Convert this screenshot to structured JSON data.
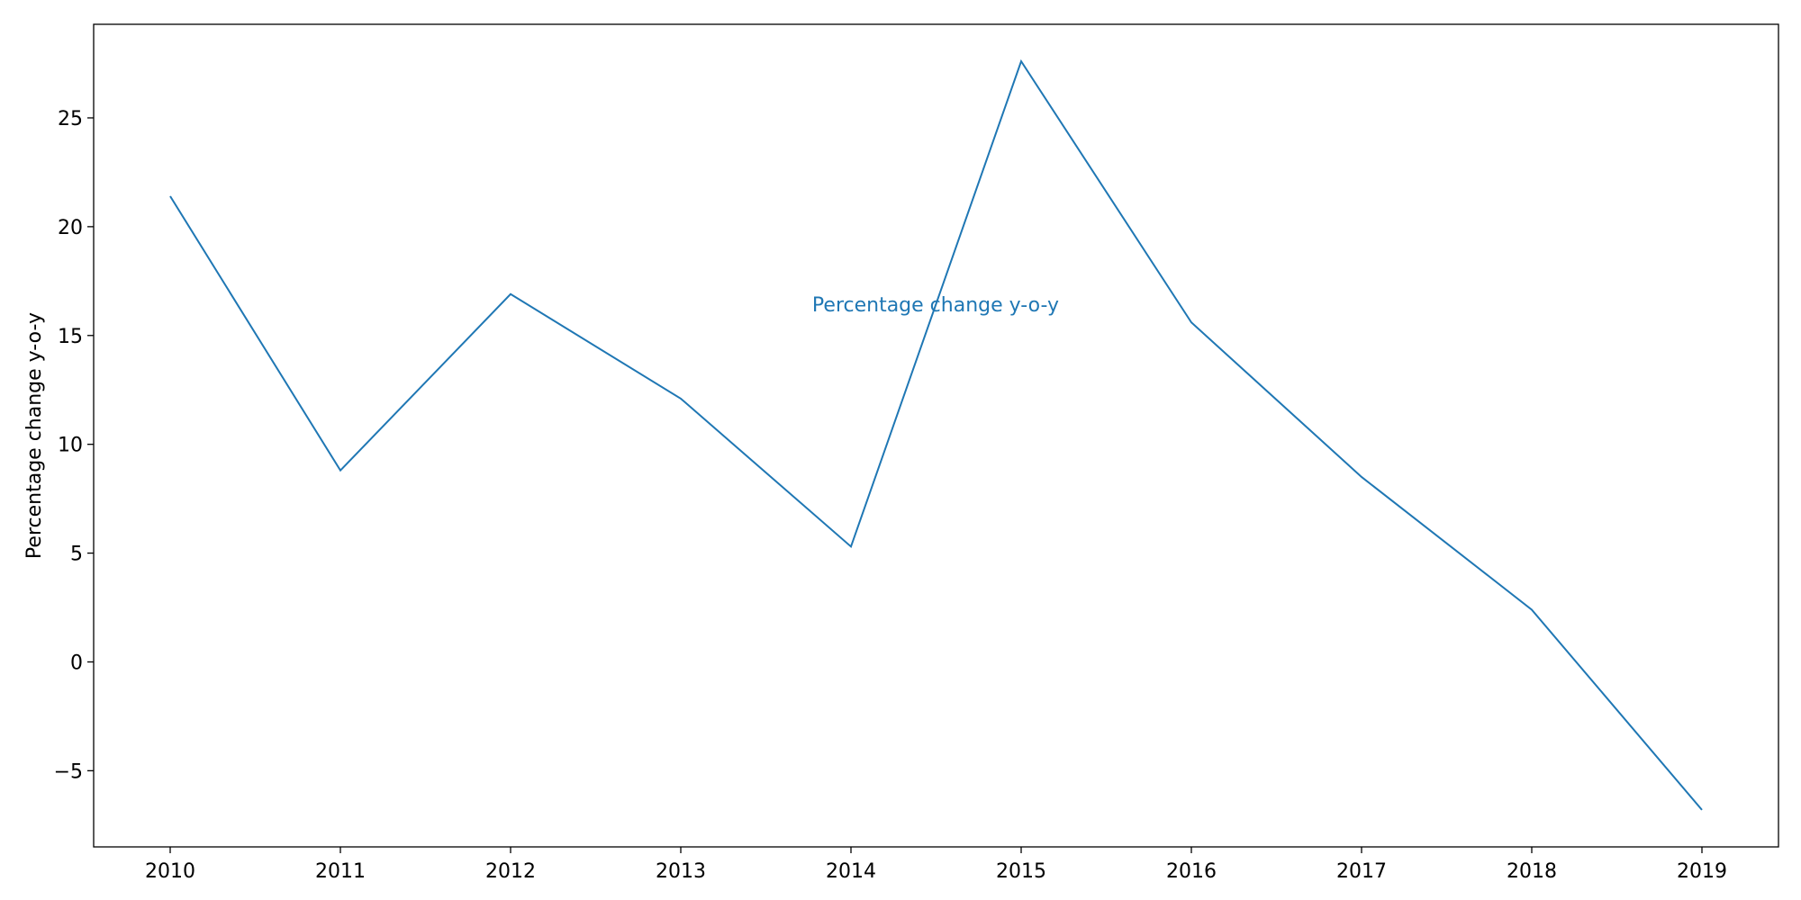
{
  "chart_data": {
    "type": "line",
    "x": [
      "2010",
      "2011",
      "2012",
      "2013",
      "2014",
      "2015",
      "2016",
      "2017",
      "2018",
      "2019"
    ],
    "series": [
      {
        "values": [
          21.4,
          8.8,
          16.9,
          12.1,
          5.3,
          27.6,
          15.6,
          8.5,
          2.4,
          -6.8
        ],
        "color": "#1f77b4"
      }
    ],
    "ylabel": "Percentage change y-o-y",
    "xlabel": "",
    "title": "",
    "annotation": "Percentage change y-o-y",
    "annotation_color": "#1f77b4",
    "ylim": [
      -8.5,
      29.3
    ],
    "yticks": [
      -5,
      0,
      5,
      10,
      15,
      20,
      25
    ],
    "ytick_labels": [
      "−5",
      "0",
      "5",
      "10",
      "15",
      "20",
      "25"
    ],
    "grid": false,
    "legend": false
  }
}
